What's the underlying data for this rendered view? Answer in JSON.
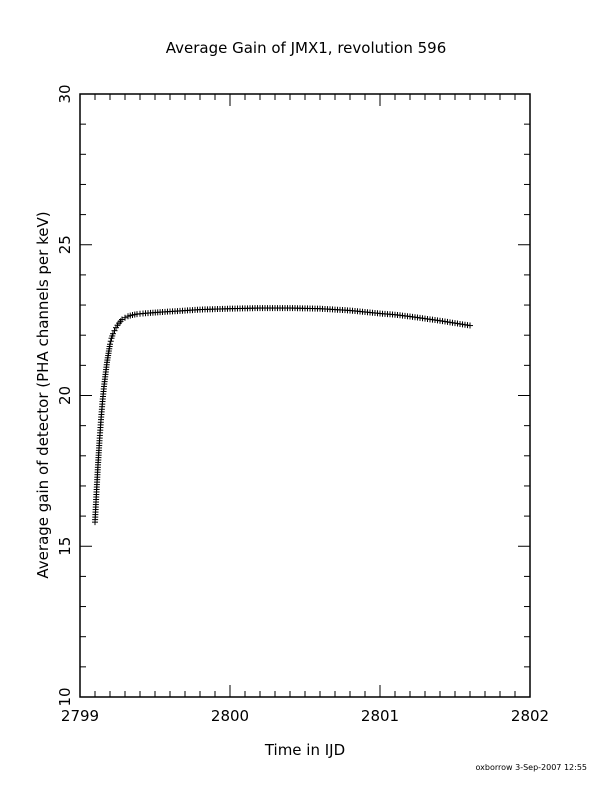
{
  "chart_data": {
    "type": "scatter",
    "title": "Average Gain of JMX1, revolution 596",
    "xlabel": "Time in IJD",
    "ylabel": "Average gain of detector (PHA channels per keV)",
    "xlim": [
      2799,
      2802
    ],
    "ylim": [
      10,
      30
    ],
    "x_ticks": [
      "2799",
      "2800",
      "2801",
      "2802"
    ],
    "y_ticks": [
      "10",
      "15",
      "20",
      "25",
      "30"
    ],
    "marker": "plus",
    "grid": false,
    "series": [
      {
        "x": [
          2799.1,
          2799.11,
          2799.12,
          2799.13,
          2799.14,
          2799.15,
          2799.16,
          2799.17,
          2799.18,
          2799.19,
          2799.2,
          2799.21,
          2799.22,
          2799.23,
          2799.24,
          2799.25,
          2799.26,
          2799.27,
          2799.28,
          2799.3,
          2799.32,
          2799.35,
          2799.38,
          2799.42,
          2799.47,
          2799.55,
          2799.65,
          2799.8,
          2800.0,
          2800.2,
          2800.4,
          2800.6,
          2800.8,
          2801.0,
          2801.1,
          2801.2,
          2801.4,
          2801.6
        ],
        "y": [
          15.8,
          16.8,
          17.7,
          18.5,
          19.2,
          19.8,
          20.3,
          20.7,
          21.1,
          21.4,
          21.7,
          21.9,
          22.05,
          22.15,
          22.25,
          22.33,
          22.4,
          22.46,
          22.52,
          22.58,
          22.63,
          22.67,
          22.7,
          22.72,
          22.74,
          22.77,
          22.8,
          22.85,
          22.88,
          22.9,
          22.9,
          22.88,
          22.82,
          22.72,
          22.68,
          22.62,
          22.48,
          22.32
        ]
      }
    ]
  },
  "footer": {
    "stamp": "oxborrow  3-Sep-2007 12:55"
  }
}
